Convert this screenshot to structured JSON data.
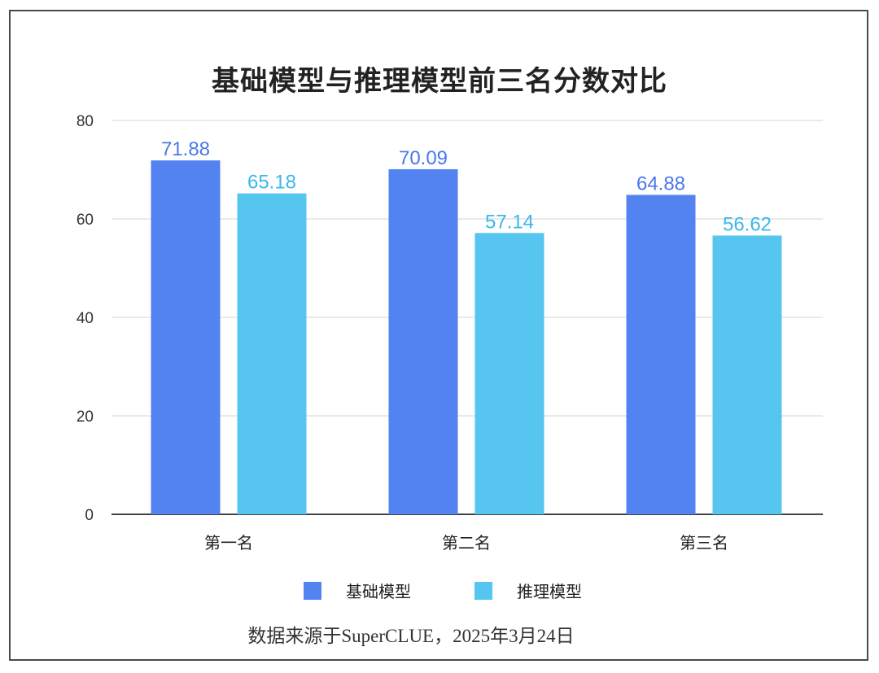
{
  "chart_data": {
    "type": "bar",
    "title": "基础模型与推理模型前三名分数对比",
    "categories": [
      "第一名",
      "第二名",
      "第三名"
    ],
    "series": [
      {
        "name": "基础模型",
        "values": [
          71.88,
          70.09,
          64.88
        ],
        "color": "#5283f0"
      },
      {
        "name": "推理模型",
        "values": [
          65.18,
          57.14,
          56.62
        ],
        "color": "#56c5ef"
      }
    ],
    "value_label_colors": [
      "#4a78ea",
      "#3ab8ea"
    ],
    "ylim": [
      0,
      80
    ],
    "yticks": [
      0,
      20,
      40,
      60,
      80
    ],
    "grid": true,
    "legend_position": "bottom",
    "xlabel": "",
    "ylabel": ""
  },
  "source_note": "数据来源于SuperCLUE，2025年3月24日"
}
